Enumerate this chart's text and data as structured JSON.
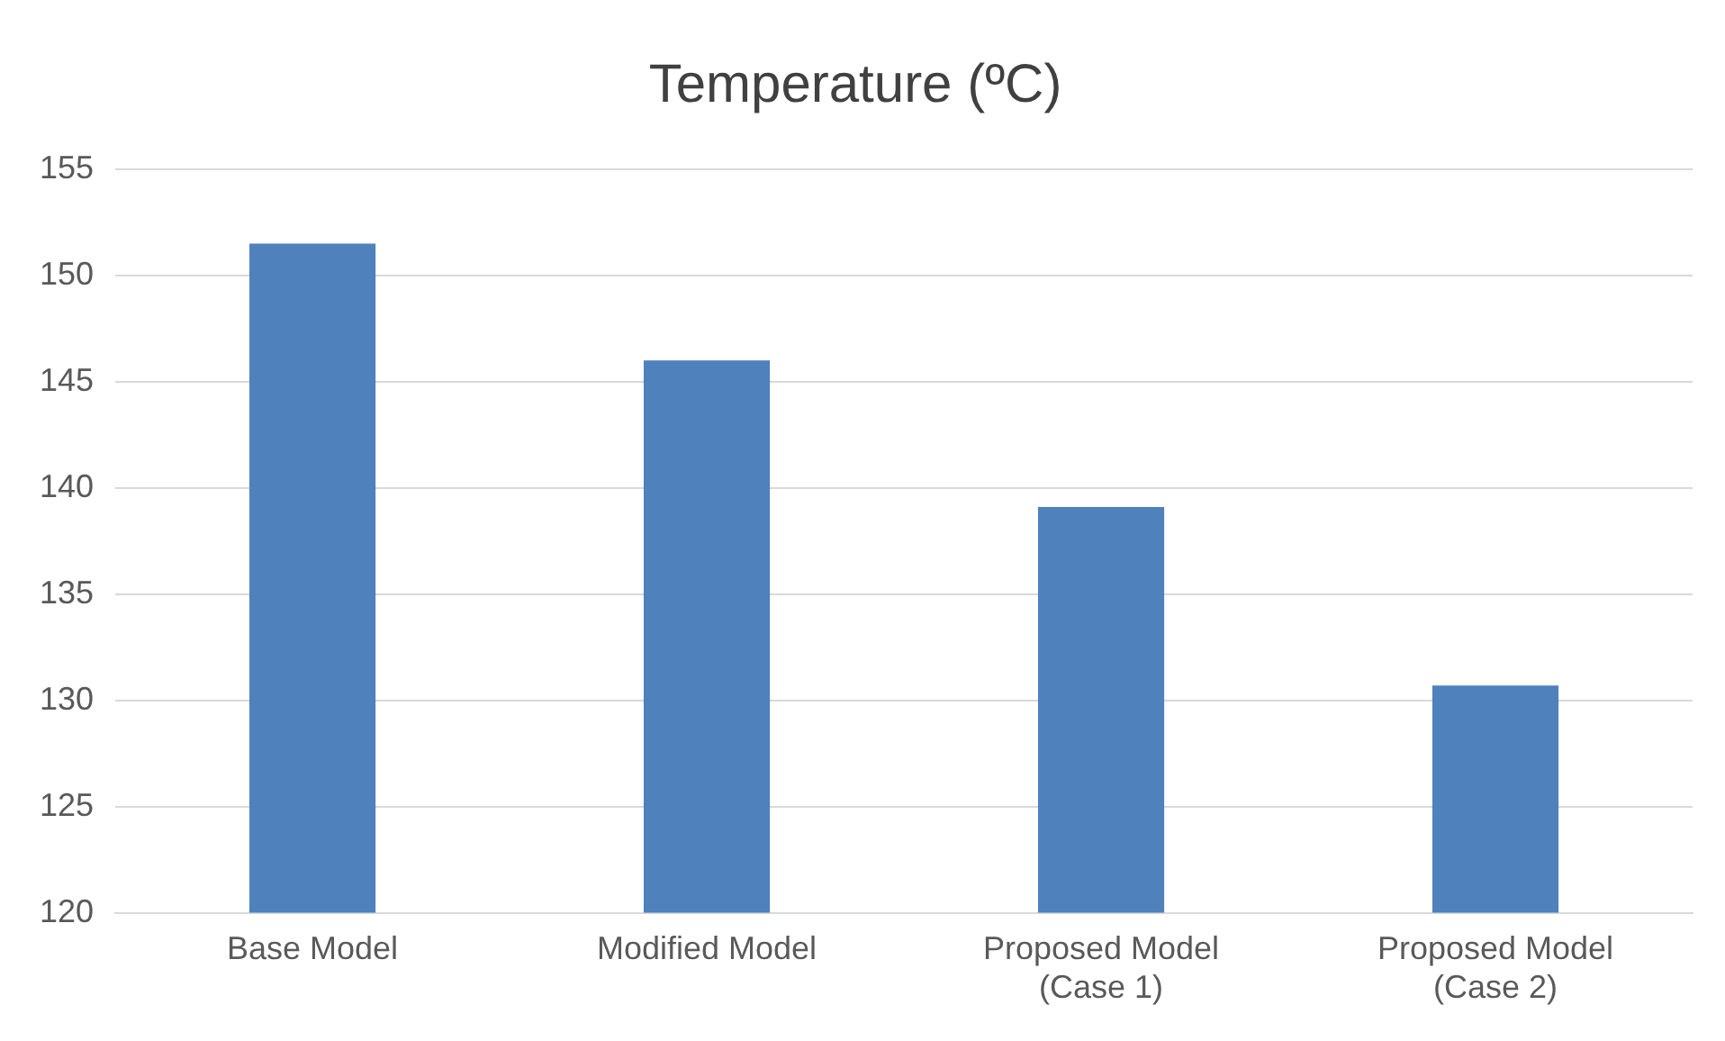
{
  "chart_data": {
    "type": "bar",
    "title": "Temperature (ºC)",
    "categories": [
      "Base Model",
      "Modified Model",
      "Proposed Model (Case 1)",
      "Proposed Model (Case 2)"
    ],
    "values": [
      151.5,
      146,
      139.1,
      130.7
    ],
    "color": "#4f81bd",
    "ylim": [
      120,
      155
    ],
    "yticks": [
      120,
      125,
      130,
      135,
      140,
      145,
      150,
      155
    ],
    "grid": "y",
    "legend": false
  }
}
